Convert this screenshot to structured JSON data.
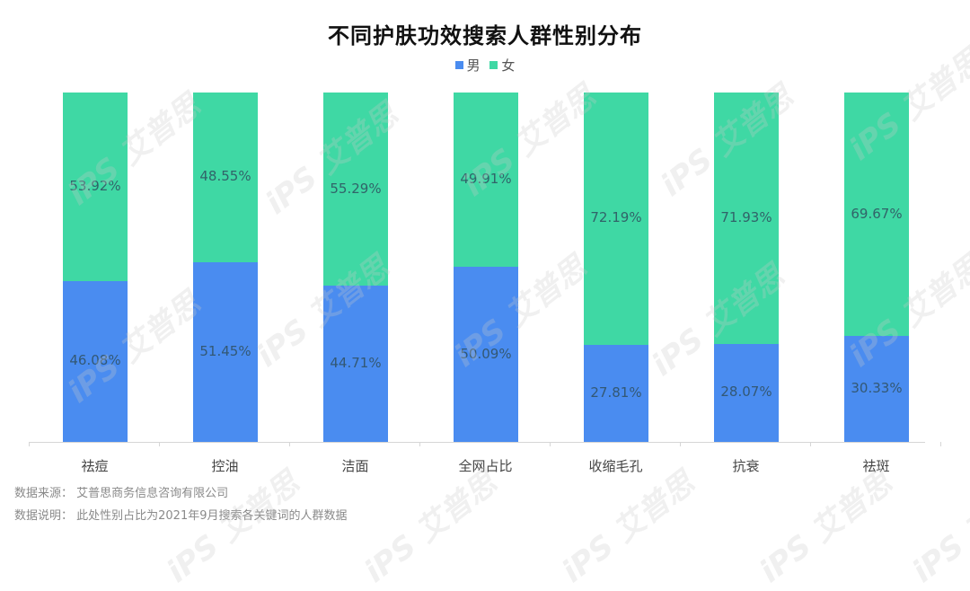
{
  "title": "不同护肤功效搜索人群性别分布",
  "legend": [
    {
      "label": "男",
      "color": "#4a8cf0"
    },
    {
      "label": "女",
      "color": "#3fd8a4"
    }
  ],
  "footnotes": {
    "source": "数据来源： 艾普思商务信息咨询有限公司",
    "note": "数据说明： 此处性别占比为2021年9月搜索各关键词的人群数据"
  },
  "watermark": "iPS 艾普思",
  "chart_data": {
    "type": "bar",
    "stacked": true,
    "percent_stacked": true,
    "title": "不同护肤功效搜索人群性别分布",
    "xlabel": "",
    "ylabel": "",
    "ylim": [
      0,
      100
    ],
    "grid": false,
    "legend_position": "top",
    "categories": [
      "祛痘",
      "控油",
      "洁面",
      "全网占比",
      "收缩毛孔",
      "抗衰",
      "祛斑"
    ],
    "series": [
      {
        "name": "男",
        "color": "#4a8cf0",
        "values": [
          46.08,
          51.45,
          44.71,
          50.09,
          27.81,
          28.07,
          30.33
        ],
        "labels": [
          "46.08%",
          "51.45%",
          "44.71%",
          "50.09%",
          "27.81%",
          "28.07%",
          "30.33%"
        ]
      },
      {
        "name": "女",
        "color": "#3fd8a4",
        "values": [
          53.92,
          48.55,
          55.29,
          49.91,
          72.19,
          71.93,
          69.67
        ],
        "labels": [
          "53.92%",
          "48.55%",
          "55.29%",
          "49.91%",
          "72.19%",
          "71.93%",
          "69.67%"
        ]
      }
    ]
  }
}
